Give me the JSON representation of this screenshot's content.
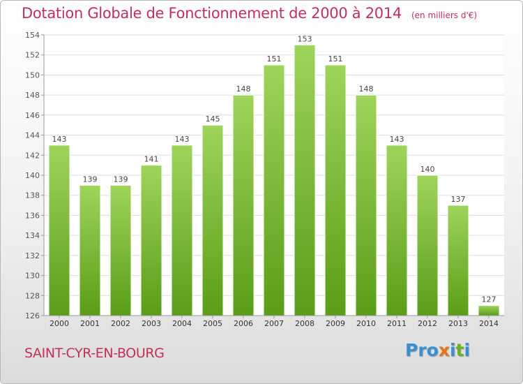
{
  "title": "Dotation Globale de Fonctionnement de 2000 à 2014",
  "subtitle": "(en milliers d'€)",
  "commune": "SAINT-CYR-EN-BOURG",
  "logo": {
    "part1": "Pro",
    "part2": "x",
    "part3": "i",
    "part4": "t",
    "part5": "i"
  },
  "colors": {
    "title": "#c2305a",
    "bar_top": "#9ed45a",
    "bar_bottom": "#5a9d18",
    "grid": "#dddddd",
    "logo_blue": "#3a8fd0",
    "logo_orange": "#e8731a",
    "logo_green": "#6ab023"
  },
  "chart_data": {
    "type": "bar",
    "title": "Dotation Globale de Fonctionnement de 2000 à 2014",
    "xlabel": "",
    "ylabel": "",
    "categories": [
      "2000",
      "2001",
      "2002",
      "2003",
      "2004",
      "2005",
      "2006",
      "2007",
      "2008",
      "2009",
      "2010",
      "2011",
      "2012",
      "2013",
      "2014"
    ],
    "values": [
      143,
      139,
      139,
      141,
      143,
      145,
      148,
      151,
      153,
      151,
      148,
      143,
      140,
      137,
      127
    ],
    "ylim": [
      126,
      154
    ],
    "yticks": [
      126,
      128,
      130,
      132,
      134,
      136,
      138,
      140,
      142,
      144,
      146,
      148,
      150,
      152,
      154
    ],
    "grid": true
  }
}
